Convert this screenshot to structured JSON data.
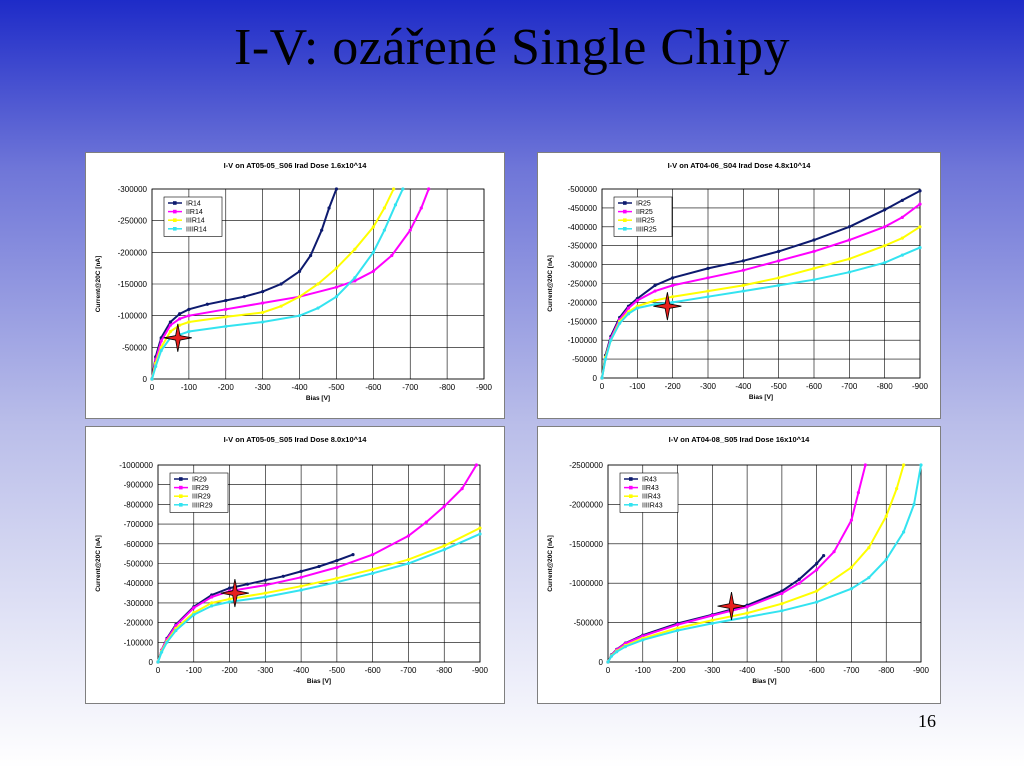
{
  "slide": {
    "title": "I-V: ozářené Single Chipy",
    "page_number": "16"
  },
  "colors": {
    "series": [
      "#0d1a6e",
      "#ff00ff",
      "#ffff00",
      "#33e3f0"
    ],
    "marker": "#e8201e"
  },
  "chart_data": [
    {
      "type": "line",
      "title": "I-V on  AT05-05_S06   Irad Dose 1.6x10^14",
      "xlabel": "Bias [V]",
      "ylabel": "Current@20C [nA]",
      "xlim": [
        0,
        -900
      ],
      "ylim": [
        0,
        -300000
      ],
      "xticks": [
        0,
        -100,
        -200,
        -300,
        -400,
        -500,
        -600,
        -700,
        -800,
        -900
      ],
      "yticks": [
        0,
        -50000,
        -100000,
        -150000,
        -200000,
        -250000,
        -300000
      ],
      "xtick_labels": [
        "0",
        "-100",
        "-200",
        "-300",
        "-400",
        "-500",
        "-600",
        "-700",
        "-800",
        "-900"
      ],
      "ytick_labels": [
        "0",
        "-50000",
        "-100000",
        "-150000",
        "-200000",
        "-250000",
        "-300000"
      ],
      "marker_point": [
        -70,
        -65000
      ],
      "series": [
        {
          "name": "IR14",
          "x": [
            0,
            -10,
            -25,
            -50,
            -75,
            -100,
            -150,
            -200,
            -250,
            -300,
            -350,
            -400,
            -430,
            -460,
            -480,
            -500
          ],
          "y": [
            0,
            -35000,
            -65000,
            -90000,
            -103000,
            -110000,
            -118000,
            -124000,
            -130000,
            -138000,
            -150000,
            -170000,
            -195000,
            -235000,
            -270000,
            -300000
          ]
        },
        {
          "name": "IIR14",
          "x": [
            0,
            -10,
            -25,
            -50,
            -75,
            -100,
            -200,
            -300,
            -400,
            -500,
            -550,
            -600,
            -650,
            -700,
            -730,
            -750
          ],
          "y": [
            0,
            -30000,
            -60000,
            -85000,
            -95000,
            -100000,
            -110000,
            -120000,
            -130000,
            -145000,
            -155000,
            -170000,
            -195000,
            -235000,
            -270000,
            -300000
          ]
        },
        {
          "name": "IIIR14",
          "x": [
            0,
            -10,
            -25,
            -50,
            -75,
            -100,
            -200,
            -300,
            -350,
            -400,
            -450,
            -500,
            -550,
            -600,
            -630,
            -655
          ],
          "y": [
            0,
            -25000,
            -50000,
            -75000,
            -85000,
            -90000,
            -98000,
            -105000,
            -115000,
            -130000,
            -150000,
            -175000,
            -205000,
            -240000,
            -270000,
            -300000
          ]
        },
        {
          "name": "IIIIR14",
          "x": [
            0,
            -10,
            -25,
            -50,
            -75,
            -100,
            -200,
            -300,
            -400,
            -450,
            -500,
            -550,
            -600,
            -630,
            -660,
            -680
          ],
          "y": [
            0,
            -20000,
            -45000,
            -65000,
            -70000,
            -75000,
            -83000,
            -90000,
            -100000,
            -112000,
            -130000,
            -160000,
            -200000,
            -235000,
            -275000,
            -300000
          ]
        }
      ]
    },
    {
      "type": "line",
      "title": "I-V on  AT04-06_S04    Irad Dose 4.8x10^14",
      "xlabel": "Bias [V]",
      "ylabel": "Current@20C [nA]",
      "xlim": [
        0,
        -900
      ],
      "ylim": [
        0,
        -500000
      ],
      "xticks": [
        0,
        -100,
        -200,
        -300,
        -400,
        -500,
        -600,
        -700,
        -800,
        -900
      ],
      "yticks": [
        0,
        -50000,
        -100000,
        -150000,
        -200000,
        -250000,
        -300000,
        -350000,
        -400000,
        -450000,
        -500000
      ],
      "xtick_labels": [
        "0",
        "-100",
        "-200",
        "-300",
        "-400",
        "-500",
        "-600",
        "-700",
        "-800",
        "-900"
      ],
      "ytick_labels": [
        "0",
        "-50000",
        "-100000",
        "-150000",
        "-200000",
        "-250000",
        "-300000",
        "-350000",
        "-400000",
        "-450000",
        "-500000"
      ],
      "marker_point": [
        -185,
        -190000
      ],
      "series": [
        {
          "name": "IR25",
          "x": [
            0,
            -10,
            -25,
            -50,
            -75,
            -100,
            -150,
            -200,
            -300,
            -400,
            -500,
            -600,
            -700,
            -800,
            -850,
            -900
          ],
          "y": [
            0,
            -60000,
            -110000,
            -160000,
            -190000,
            -210000,
            -245000,
            -265000,
            -290000,
            -310000,
            -335000,
            -365000,
            -400000,
            -445000,
            -470000,
            -495000
          ]
        },
        {
          "name": "IIR25",
          "x": [
            0,
            -10,
            -25,
            -50,
            -75,
            -100,
            -150,
            -200,
            -300,
            -400,
            -500,
            -600,
            -700,
            -800,
            -850,
            -900
          ],
          "y": [
            0,
            -55000,
            -105000,
            -155000,
            -185000,
            -205000,
            -230000,
            -245000,
            -265000,
            -285000,
            -310000,
            -335000,
            -365000,
            -400000,
            -425000,
            -460000
          ]
        },
        {
          "name": "IIIR25",
          "x": [
            0,
            -10,
            -25,
            -50,
            -75,
            -100,
            -150,
            -200,
            -300,
            -400,
            -500,
            -600,
            -700,
            -800,
            -850,
            -900
          ],
          "y": [
            0,
            -55000,
            -100000,
            -150000,
            -175000,
            -190000,
            -205000,
            -215000,
            -230000,
            -245000,
            -265000,
            -290000,
            -315000,
            -350000,
            -370000,
            -400000
          ]
        },
        {
          "name": "IIIIR25",
          "x": [
            0,
            -10,
            -25,
            -50,
            -75,
            -100,
            -150,
            -200,
            -300,
            -400,
            -500,
            -600,
            -700,
            -800,
            -850,
            -900
          ],
          "y": [
            0,
            -50000,
            -100000,
            -145000,
            -170000,
            -185000,
            -195000,
            -200000,
            -215000,
            -230000,
            -245000,
            -260000,
            -280000,
            -305000,
            -325000,
            -345000
          ]
        }
      ]
    },
    {
      "type": "line",
      "title": "I-V on  AT05-05_S05    Irad Dose 8.0x10^14",
      "xlabel": "Bias [V]",
      "ylabel": "Current@20C [nA]",
      "xlim": [
        0,
        -900
      ],
      "ylim": [
        0,
        -1000000
      ],
      "xticks": [
        0,
        -100,
        -200,
        -300,
        -400,
        -500,
        -600,
        -700,
        -800,
        -900
      ],
      "yticks": [
        0,
        -100000,
        -200000,
        -300000,
        -400000,
        -500000,
        -600000,
        -700000,
        -800000,
        -900000,
        -1000000
      ],
      "xtick_labels": [
        "0",
        "-100",
        "-200",
        "-300",
        "-400",
        "-500",
        "-600",
        "-700",
        "-800",
        "-900"
      ],
      "ytick_labels": [
        "0",
        "-100000",
        "-200000",
        "-300000",
        "-400000",
        "-500000",
        "-600000",
        "-700000",
        "-800000",
        "-900000",
        "-1000000"
      ],
      "marker_point": [
        -215,
        -350000
      ],
      "series": [
        {
          "name": "IR29",
          "x": [
            0,
            -10,
            -25,
            -50,
            -100,
            -150,
            -200,
            -250,
            -300,
            -350,
            -400,
            -450,
            -500,
            -545
          ],
          "y": [
            0,
            -60000,
            -120000,
            -190000,
            -280000,
            -340000,
            -375000,
            -395000,
            -415000,
            -435000,
            -460000,
            -485000,
            -515000,
            -545000
          ]
        },
        {
          "name": "IIR29",
          "x": [
            0,
            -10,
            -25,
            -50,
            -100,
            -150,
            -200,
            -300,
            -400,
            -500,
            -600,
            -700,
            -750,
            -800,
            -850,
            -890
          ],
          "y": [
            0,
            -60000,
            -115000,
            -185000,
            -275000,
            -330000,
            -360000,
            -390000,
            -430000,
            -480000,
            -545000,
            -640000,
            -710000,
            -790000,
            -880000,
            -1000000
          ]
        },
        {
          "name": "IIIR29",
          "x": [
            0,
            -10,
            -25,
            -50,
            -100,
            -150,
            -200,
            -300,
            -400,
            -500,
            -600,
            -700,
            -800,
            -900
          ],
          "y": [
            0,
            -55000,
            -105000,
            -170000,
            -250000,
            -300000,
            -320000,
            -350000,
            -385000,
            -425000,
            -470000,
            -520000,
            -590000,
            -680000
          ]
        },
        {
          "name": "IIIIR29",
          "x": [
            0,
            -10,
            -25,
            -50,
            -100,
            -150,
            -200,
            -300,
            -400,
            -500,
            -600,
            -700,
            -800,
            -900
          ],
          "y": [
            0,
            -50000,
            -100000,
            -160000,
            -240000,
            -285000,
            -305000,
            -330000,
            -365000,
            -405000,
            -450000,
            -500000,
            -570000,
            -650000
          ]
        }
      ]
    },
    {
      "type": "line",
      "title": "I-V on  AT04-08_S05    Irad Dose 16x10^14",
      "xlabel": "Bias [V]",
      "ylabel": "Current@20C [nA]",
      "xlim": [
        0,
        -900
      ],
      "ylim": [
        0,
        -2500000
      ],
      "xticks": [
        0,
        -100,
        -200,
        -300,
        -400,
        -500,
        -600,
        -700,
        -800,
        -900
      ],
      "yticks": [
        0,
        -500000,
        -1000000,
        -1500000,
        -2000000,
        -2500000
      ],
      "xtick_labels": [
        "0",
        "-100",
        "-200",
        "-300",
        "-400",
        "-500",
        "-600",
        "-700",
        "-800",
        "-900"
      ],
      "ytick_labels": [
        "0",
        "-500000",
        "-1000000",
        "-1500000",
        "-2000000",
        "-2500000"
      ],
      "marker_point": [
        -355,
        -710000
      ],
      "series": [
        {
          "name": "IR43",
          "x": [
            0,
            -10,
            -25,
            -50,
            -100,
            -200,
            -300,
            -400,
            -500,
            -550,
            -600,
            -620
          ],
          "y": [
            0,
            -90000,
            -160000,
            -240000,
            -340000,
            -490000,
            -600000,
            -720000,
            -900000,
            -1050000,
            -1250000,
            -1350000
          ]
        },
        {
          "name": "IIR43",
          "x": [
            0,
            -10,
            -25,
            -50,
            -100,
            -200,
            -300,
            -400,
            -500,
            -550,
            -600,
            -650,
            -700,
            -720,
            -740
          ],
          "y": [
            0,
            -85000,
            -155000,
            -235000,
            -330000,
            -475000,
            -590000,
            -700000,
            -870000,
            -1000000,
            -1170000,
            -1400000,
            -1800000,
            -2150000,
            -2500000
          ]
        },
        {
          "name": "IIIR43",
          "x": [
            0,
            -10,
            -25,
            -50,
            -100,
            -200,
            -300,
            -400,
            -500,
            -600,
            -700,
            -750,
            -800,
            -830,
            -850
          ],
          "y": [
            0,
            -80000,
            -140000,
            -210000,
            -300000,
            -430000,
            -530000,
            -620000,
            -740000,
            -900000,
            -1200000,
            -1450000,
            -1850000,
            -2200000,
            -2500000
          ]
        },
        {
          "name": "IIIIR43",
          "x": [
            0,
            -10,
            -25,
            -50,
            -100,
            -200,
            -300,
            -400,
            -500,
            -600,
            -700,
            -750,
            -800,
            -850,
            -880,
            -900
          ],
          "y": [
            0,
            -75000,
            -130000,
            -195000,
            -280000,
            -400000,
            -490000,
            -570000,
            -650000,
            -760000,
            -930000,
            -1070000,
            -1300000,
            -1650000,
            -2000000,
            -2500000
          ]
        }
      ]
    }
  ]
}
